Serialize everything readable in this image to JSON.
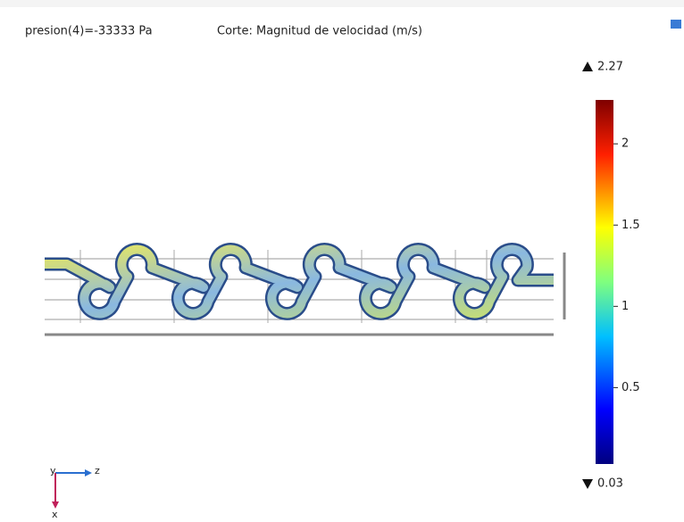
{
  "header": {
    "left": "presion(4)=-33333 Pa",
    "title": "Corte: Magnitud de velocidad (m/s)"
  },
  "colorbar": {
    "max": 2.27,
    "min": 0.03,
    "ticks": [
      2,
      1.5,
      1,
      0.5
    ]
  },
  "axes": {
    "y": "y",
    "z": "z",
    "x": "x"
  }
}
